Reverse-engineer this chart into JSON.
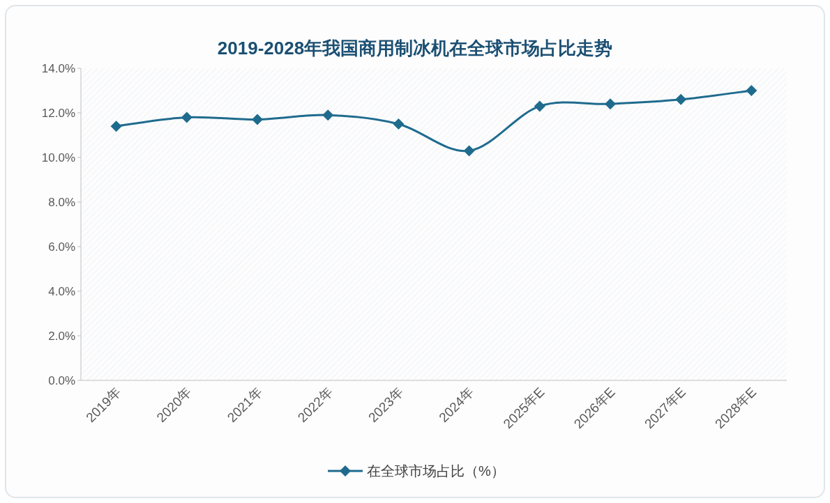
{
  "chart_data": {
    "type": "line",
    "title": "2019-2028年我国商用制冰机在全球市场占比走势",
    "categories": [
      "2019年",
      "2020年",
      "2021年",
      "2022年",
      "2023年",
      "2024年",
      "2025年E",
      "2026年E",
      "2027年E",
      "2028年E"
    ],
    "series": [
      {
        "name": "在全球市场占比（%）",
        "color": "#1f6b8e",
        "values": [
          11.4,
          11.8,
          11.7,
          11.9,
          11.5,
          10.3,
          12.3,
          12.4,
          12.6,
          13.0
        ]
      }
    ],
    "ylim": [
      0,
      14
    ],
    "yticks": [
      {
        "value": 0,
        "label": "0.0%"
      },
      {
        "value": 2,
        "label": "2.0%"
      },
      {
        "value": 4,
        "label": "4.0%"
      },
      {
        "value": 6,
        "label": "6.0%"
      },
      {
        "value": 8,
        "label": "8.0%"
      },
      {
        "value": 10,
        "label": "10.0%"
      },
      {
        "value": 12,
        "label": "12.0%"
      },
      {
        "value": 14,
        "label": "14.0%"
      }
    ],
    "marker": "diamond",
    "legend": "bottom",
    "grid": false
  }
}
